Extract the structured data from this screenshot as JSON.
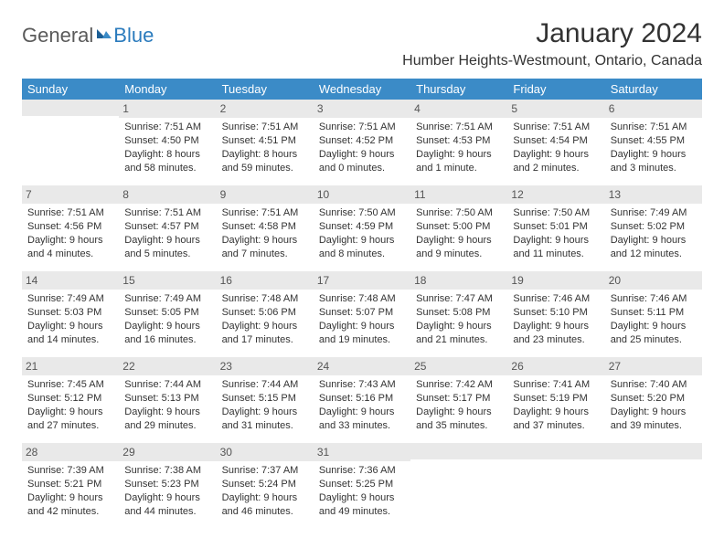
{
  "brand": {
    "general": "General",
    "blue": "Blue"
  },
  "title": "January 2024",
  "location": "Humber Heights-Westmount, Ontario, Canada",
  "colors": {
    "header_bg": "#3b8bc7",
    "header_fg": "#ffffff",
    "dayrow_bg": "#e9e9e9",
    "text": "#333333",
    "logo_gray": "#5a5a5a",
    "logo_blue": "#2b7bbd"
  },
  "dayNames": [
    "Sunday",
    "Monday",
    "Tuesday",
    "Wednesday",
    "Thursday",
    "Friday",
    "Saturday"
  ],
  "weeks": [
    [
      {
        "day": "",
        "lines": []
      },
      {
        "day": "1",
        "lines": [
          "Sunrise: 7:51 AM",
          "Sunset: 4:50 PM",
          "Daylight: 8 hours and 58 minutes."
        ]
      },
      {
        "day": "2",
        "lines": [
          "Sunrise: 7:51 AM",
          "Sunset: 4:51 PM",
          "Daylight: 8 hours and 59 minutes."
        ]
      },
      {
        "day": "3",
        "lines": [
          "Sunrise: 7:51 AM",
          "Sunset: 4:52 PM",
          "Daylight: 9 hours and 0 minutes."
        ]
      },
      {
        "day": "4",
        "lines": [
          "Sunrise: 7:51 AM",
          "Sunset: 4:53 PM",
          "Daylight: 9 hours and 1 minute."
        ]
      },
      {
        "day": "5",
        "lines": [
          "Sunrise: 7:51 AM",
          "Sunset: 4:54 PM",
          "Daylight: 9 hours and 2 minutes."
        ]
      },
      {
        "day": "6",
        "lines": [
          "Sunrise: 7:51 AM",
          "Sunset: 4:55 PM",
          "Daylight: 9 hours and 3 minutes."
        ]
      }
    ],
    [
      {
        "day": "7",
        "lines": [
          "Sunrise: 7:51 AM",
          "Sunset: 4:56 PM",
          "Daylight: 9 hours and 4 minutes."
        ]
      },
      {
        "day": "8",
        "lines": [
          "Sunrise: 7:51 AM",
          "Sunset: 4:57 PM",
          "Daylight: 9 hours and 5 minutes."
        ]
      },
      {
        "day": "9",
        "lines": [
          "Sunrise: 7:51 AM",
          "Sunset: 4:58 PM",
          "Daylight: 9 hours and 7 minutes."
        ]
      },
      {
        "day": "10",
        "lines": [
          "Sunrise: 7:50 AM",
          "Sunset: 4:59 PM",
          "Daylight: 9 hours and 8 minutes."
        ]
      },
      {
        "day": "11",
        "lines": [
          "Sunrise: 7:50 AM",
          "Sunset: 5:00 PM",
          "Daylight: 9 hours and 9 minutes."
        ]
      },
      {
        "day": "12",
        "lines": [
          "Sunrise: 7:50 AM",
          "Sunset: 5:01 PM",
          "Daylight: 9 hours and 11 minutes."
        ]
      },
      {
        "day": "13",
        "lines": [
          "Sunrise: 7:49 AM",
          "Sunset: 5:02 PM",
          "Daylight: 9 hours and 12 minutes."
        ]
      }
    ],
    [
      {
        "day": "14",
        "lines": [
          "Sunrise: 7:49 AM",
          "Sunset: 5:03 PM",
          "Daylight: 9 hours and 14 minutes."
        ]
      },
      {
        "day": "15",
        "lines": [
          "Sunrise: 7:49 AM",
          "Sunset: 5:05 PM",
          "Daylight: 9 hours and 16 minutes."
        ]
      },
      {
        "day": "16",
        "lines": [
          "Sunrise: 7:48 AM",
          "Sunset: 5:06 PM",
          "Daylight: 9 hours and 17 minutes."
        ]
      },
      {
        "day": "17",
        "lines": [
          "Sunrise: 7:48 AM",
          "Sunset: 5:07 PM",
          "Daylight: 9 hours and 19 minutes."
        ]
      },
      {
        "day": "18",
        "lines": [
          "Sunrise: 7:47 AM",
          "Sunset: 5:08 PM",
          "Daylight: 9 hours and 21 minutes."
        ]
      },
      {
        "day": "19",
        "lines": [
          "Sunrise: 7:46 AM",
          "Sunset: 5:10 PM",
          "Daylight: 9 hours and 23 minutes."
        ]
      },
      {
        "day": "20",
        "lines": [
          "Sunrise: 7:46 AM",
          "Sunset: 5:11 PM",
          "Daylight: 9 hours and 25 minutes."
        ]
      }
    ],
    [
      {
        "day": "21",
        "lines": [
          "Sunrise: 7:45 AM",
          "Sunset: 5:12 PM",
          "Daylight: 9 hours and 27 minutes."
        ]
      },
      {
        "day": "22",
        "lines": [
          "Sunrise: 7:44 AM",
          "Sunset: 5:13 PM",
          "Daylight: 9 hours and 29 minutes."
        ]
      },
      {
        "day": "23",
        "lines": [
          "Sunrise: 7:44 AM",
          "Sunset: 5:15 PM",
          "Daylight: 9 hours and 31 minutes."
        ]
      },
      {
        "day": "24",
        "lines": [
          "Sunrise: 7:43 AM",
          "Sunset: 5:16 PM",
          "Daylight: 9 hours and 33 minutes."
        ]
      },
      {
        "day": "25",
        "lines": [
          "Sunrise: 7:42 AM",
          "Sunset: 5:17 PM",
          "Daylight: 9 hours and 35 minutes."
        ]
      },
      {
        "day": "26",
        "lines": [
          "Sunrise: 7:41 AM",
          "Sunset: 5:19 PM",
          "Daylight: 9 hours and 37 minutes."
        ]
      },
      {
        "day": "27",
        "lines": [
          "Sunrise: 7:40 AM",
          "Sunset: 5:20 PM",
          "Daylight: 9 hours and 39 minutes."
        ]
      }
    ],
    [
      {
        "day": "28",
        "lines": [
          "Sunrise: 7:39 AM",
          "Sunset: 5:21 PM",
          "Daylight: 9 hours and 42 minutes."
        ]
      },
      {
        "day": "29",
        "lines": [
          "Sunrise: 7:38 AM",
          "Sunset: 5:23 PM",
          "Daylight: 9 hours and 44 minutes."
        ]
      },
      {
        "day": "30",
        "lines": [
          "Sunrise: 7:37 AM",
          "Sunset: 5:24 PM",
          "Daylight: 9 hours and 46 minutes."
        ]
      },
      {
        "day": "31",
        "lines": [
          "Sunrise: 7:36 AM",
          "Sunset: 5:25 PM",
          "Daylight: 9 hours and 49 minutes."
        ]
      },
      {
        "day": "",
        "lines": []
      },
      {
        "day": "",
        "lines": []
      },
      {
        "day": "",
        "lines": []
      }
    ]
  ]
}
